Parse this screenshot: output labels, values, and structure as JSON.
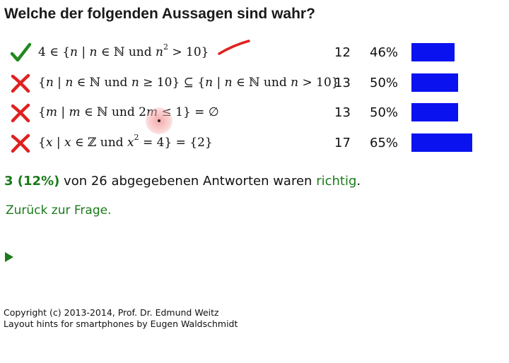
{
  "title": "Welche der folgenden Aussagen sind wahr?",
  "answers": [
    {
      "status": "correct",
      "count": "12",
      "percent": "46%",
      "fraction": 0.46
    },
    {
      "status": "wrong",
      "count": "13",
      "percent": "50%",
      "fraction": 0.5
    },
    {
      "status": "wrong",
      "count": "13",
      "percent": "50%",
      "fraction": 0.5
    },
    {
      "status": "wrong",
      "count": "17",
      "percent": "65%",
      "fraction": 0.65
    }
  ],
  "summary": {
    "correct_count": "3 (12%)",
    "text_mid": " von 26 abgegebenen Antworten waren ",
    "correct_word": "richtig",
    "text_end": "."
  },
  "back_link": "Zurück zur Frage.",
  "footer": {
    "line1": "Copyright (c) 2013-2014, Prof. Dr. Edmund Weitz",
    "line2": "Layout hints for smartphones by Eugen Waldschmidt"
  },
  "colors": {
    "bar": "#0a12f0",
    "green": "#1a7a1a",
    "wrong": "#e02020",
    "annotation": "#e02020"
  },
  "icons": {
    "correct": "checkmark-icon",
    "wrong": "cross-icon",
    "play": "play-triangle-icon"
  }
}
